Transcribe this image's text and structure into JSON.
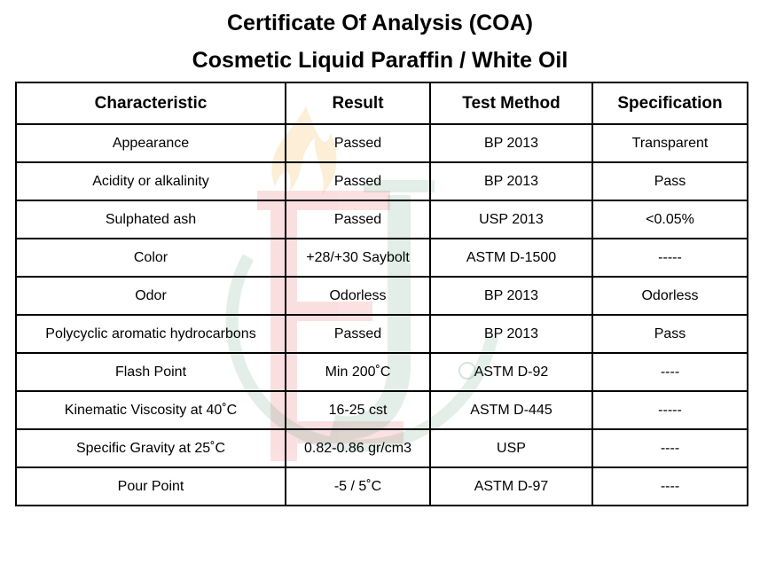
{
  "title": {
    "line1": "Certificate Of Analysis (COA)",
    "line2": "Cosmetic Liquid Paraffin / White Oil"
  },
  "watermark": {
    "letters": "EJ",
    "colors": {
      "flame": "#f3b24a",
      "red": "#e8565e",
      "green": "#4f9a72"
    }
  },
  "table": {
    "headers": [
      "Characteristic",
      "Result",
      "Test Method",
      "Specification"
    ],
    "rows": [
      [
        "Appearance",
        "Passed",
        "BP 2013",
        "Transparent"
      ],
      [
        "Acidity or alkalinity",
        "Passed",
        "BP 2013",
        "Pass"
      ],
      [
        "Sulphated ash",
        "Passed",
        "USP 2013",
        "<0.05%"
      ],
      [
        "Color",
        "+28/+30 Saybolt",
        "ASTM D-1500",
        "-----"
      ],
      [
        "Odor",
        "Odorless",
        "BP 2013",
        "Odorless"
      ],
      [
        "Polycyclic aromatic hydrocarbons",
        "Passed",
        "BP 2013",
        "Pass"
      ],
      [
        "Flash Point",
        "Min 200˚C",
        "ASTM D-92",
        "----"
      ],
      [
        "Kinematic Viscosity at 40˚C",
        "16-25 cst",
        "ASTM D-445",
        "-----"
      ],
      [
        "Specific Gravity at 25˚C",
        "0.82-0.86 gr/cm3",
        "USP",
        "----"
      ],
      [
        "Pour Point",
        "-5 / 5˚C",
        "ASTM D-97",
        "----"
      ]
    ]
  }
}
